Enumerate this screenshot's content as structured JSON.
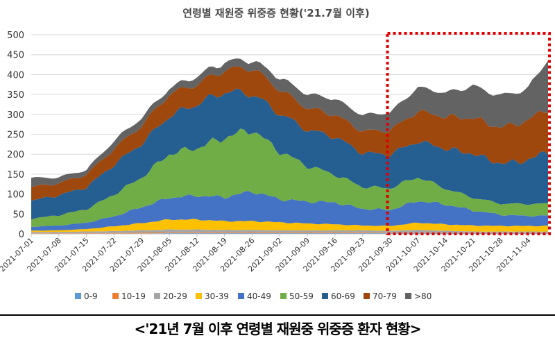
{
  "chart_data": {
    "type": "area",
    "stacked": true,
    "title": "연령별 재원중 위중증 현황('21.7월 이후)",
    "caption": "<'21년 7월 이후 연령별 재원중 위중증 환자 현황>",
    "ylim": [
      0,
      500
    ],
    "yticks": [
      0,
      50,
      100,
      150,
      200,
      250,
      300,
      350,
      400,
      450,
      500
    ],
    "x_tick_labels": [
      "2021-07-01",
      "2021-07-08",
      "2021-07-15",
      "2021-07-22",
      "2021-07-29",
      "2021-08-05",
      "2021-08-12",
      "2021-08-19",
      "2021-08-26",
      "2021-09-02",
      "2021-09-09",
      "2021-09-16",
      "2021-09-23",
      "2021-09-30",
      "2021-10-07",
      "2021-10-14",
      "2021-10-21",
      "2021-10-28",
      "2021-11-04"
    ],
    "highlight_region": {
      "from_day": 91,
      "to_day": 131,
      "style": "red-dotted"
    },
    "anchor_days": [
      0,
      7,
      14,
      21,
      28,
      35,
      42,
      49,
      56,
      63,
      70,
      77,
      84,
      91,
      98,
      105,
      112,
      119,
      126,
      131
    ],
    "series": [
      {
        "name": "0-9",
        "color": "#5b9bd5",
        "anchors": [
          1,
          1,
          1,
          1,
          1,
          2,
          2,
          2,
          2,
          2,
          2,
          2,
          2,
          2,
          3,
          3,
          2,
          2,
          2,
          2
        ]
      },
      {
        "name": "10-19",
        "color": "#ed7d31",
        "anchors": [
          1,
          1,
          1,
          1,
          2,
          2,
          2,
          2,
          2,
          2,
          2,
          2,
          2,
          1,
          1,
          1,
          1,
          1,
          1,
          1
        ]
      },
      {
        "name": "20-29",
        "color": "#a5a5a5",
        "anchors": [
          3,
          3,
          4,
          5,
          6,
          7,
          7,
          6,
          6,
          5,
          5,
          5,
          5,
          5,
          6,
          4,
          3,
          3,
          3,
          3
        ]
      },
      {
        "name": "30-39",
        "color": "#ffc000",
        "anchors": [
          3,
          4,
          6,
          12,
          18,
          25,
          25,
          22,
          22,
          20,
          17,
          15,
          12,
          12,
          18,
          16,
          15,
          14,
          14,
          14
        ]
      },
      {
        "name": "40-49",
        "color": "#4472c4",
        "anchors": [
          10,
          12,
          16,
          25,
          40,
          55,
          60,
          60,
          75,
          58,
          55,
          55,
          42,
          40,
          55,
          50,
          38,
          28,
          25,
          26
        ]
      },
      {
        "name": "50-59",
        "color": "#70ad47",
        "anchors": [
          20,
          26,
          34,
          55,
          75,
          110,
          120,
          150,
          155,
          120,
          90,
          70,
          55,
          55,
          60,
          40,
          32,
          28,
          30,
          30
        ]
      },
      {
        "name": "60-69",
        "color": "#255e91",
        "anchors": [
          45,
          50,
          55,
          75,
          85,
          95,
          110,
          115,
          90,
          95,
          90,
          95,
          85,
          85,
          90,
          100,
          110,
          100,
          110,
          132
        ]
      },
      {
        "name": "70-79",
        "color": "#9e480e",
        "anchors": [
          35,
          30,
          32,
          40,
          45,
          55,
          50,
          55,
          65,
          60,
          55,
          55,
          55,
          60,
          75,
          80,
          90,
          90,
          100,
          108
        ]
      },
      {
        "name": ">80",
        "color": "#636363",
        "anchors": [
          22,
          15,
          12,
          20,
          20,
          15,
          20,
          20,
          20,
          30,
          35,
          40,
          40,
          45,
          60,
          60,
          80,
          80,
          80,
          125
        ]
      }
    ]
  }
}
